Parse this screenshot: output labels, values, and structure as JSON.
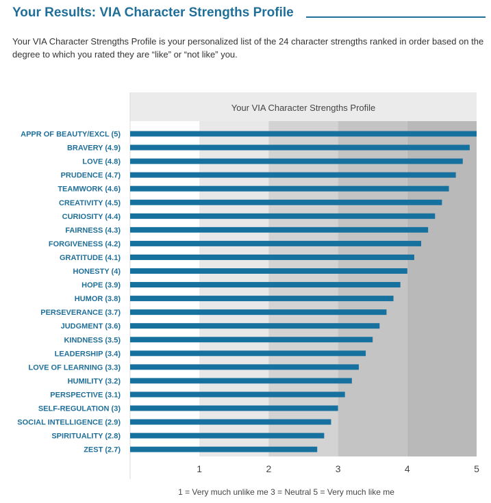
{
  "header": {
    "title": "Your Results: VIA Character Strengths Profile",
    "intro": "Your VIA Character Strengths Profile is your personalized list of the 24 character strengths ranked in order based on the degree to which you rated they are “like” or “not like” you."
  },
  "colors": {
    "accent": "#1f6f99",
    "bar": "#17719e",
    "title_band": "#ebebeb",
    "band_light": "#ffffff",
    "band_mid": "#e8e8e8",
    "band_dark": "#d3d3d3",
    "band_darker": "#c4c4c4"
  },
  "chart_data": {
    "type": "bar",
    "orientation": "horizontal",
    "title": "Your VIA Character Strengths Profile",
    "categories": [
      "APPR OF BEAUTY/EXCL (5)",
      "BRAVERY (4.9)",
      "LOVE (4.8)",
      "PRUDENCE (4.7)",
      "TEAMWORK (4.6)",
      "CREATIVITY (4.5)",
      "CURIOSITY (4.4)",
      "FAIRNESS (4.3)",
      "FORGIVENESS (4.2)",
      "GRATITUDE (4.1)",
      "HONESTY (4)",
      "HOPE (3.9)",
      "HUMOR (3.8)",
      "PERSEVERANCE (3.7)",
      "JUDGMENT (3.6)",
      "KINDNESS (3.5)",
      "LEADERSHIP (3.4)",
      "LOVE OF LEARNING (3.3)",
      "HUMILITY (3.2)",
      "PERSPECTIVE (3.1)",
      "SELF-REGULATION (3)",
      "SOCIAL INTELLIGENCE (2.9)",
      "SPIRITUALITY (2.8)",
      "ZEST (2.7)"
    ],
    "values": [
      5,
      4.9,
      4.8,
      4.7,
      4.6,
      4.5,
      4.4,
      4.3,
      4.2,
      4.1,
      4,
      3.9,
      3.8,
      3.7,
      3.6,
      3.5,
      3.4,
      3.3,
      3.2,
      3.1,
      3,
      2.9,
      2.8,
      2.7
    ],
    "xlim": [
      0,
      5
    ],
    "xticks": [
      1,
      2,
      3,
      4,
      5
    ],
    "xlabel": "",
    "ylabel": "",
    "grid": false,
    "background_bands": true,
    "legend_text": "1 = Very much unlike me    3 = Neutral    5 = Very much like me"
  }
}
